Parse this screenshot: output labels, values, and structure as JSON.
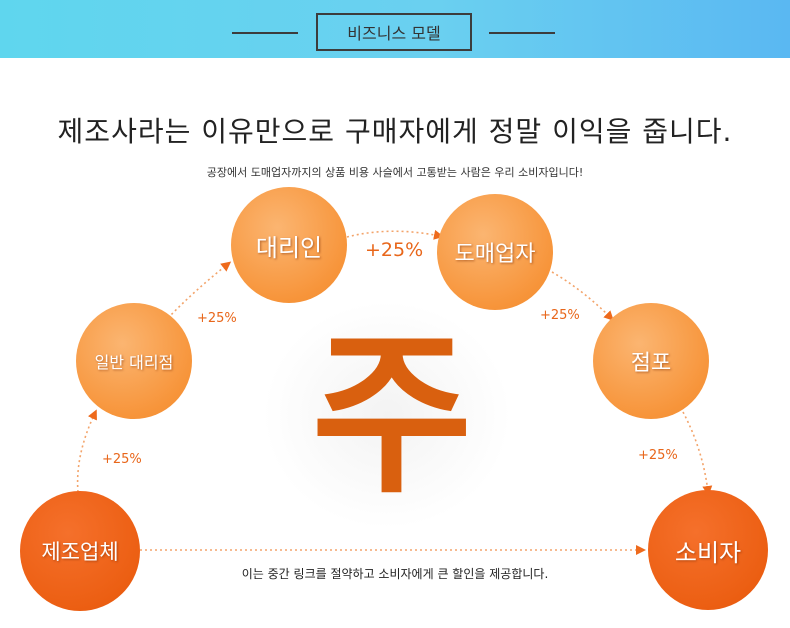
{
  "banner": {
    "title": "비즈니스 모델"
  },
  "headline": "제조사라는 이유만으로 구매자에게 정말 이익을 줍니다.",
  "subline": "공장에서 도매업자까지의 상품 비용 사슬에서 고통받는 사람은 우리 소비자입니다!",
  "center_char": "주",
  "nodes": {
    "manufacturer": "제조업체",
    "general_agent": "일반 대리점",
    "agent": "대리인",
    "wholesaler": "도매업자",
    "store": "점포",
    "consumer": "소비자"
  },
  "markups": {
    "m1": "+25%",
    "m2": "+25%",
    "m3": "+25%",
    "m4": "+25%",
    "m5": "+25%"
  },
  "bottom_note": "이는 중간 링크를 절약하고 소비자에게 큰 할인을 제공합니다.",
  "colors": {
    "banner_start": "#5fd6ee",
    "banner_end": "#5ab8f2",
    "node_light": "#f7953b",
    "node_dark": "#ec5f13",
    "accent": "#e8661a",
    "center_char": "#d9600f"
  }
}
